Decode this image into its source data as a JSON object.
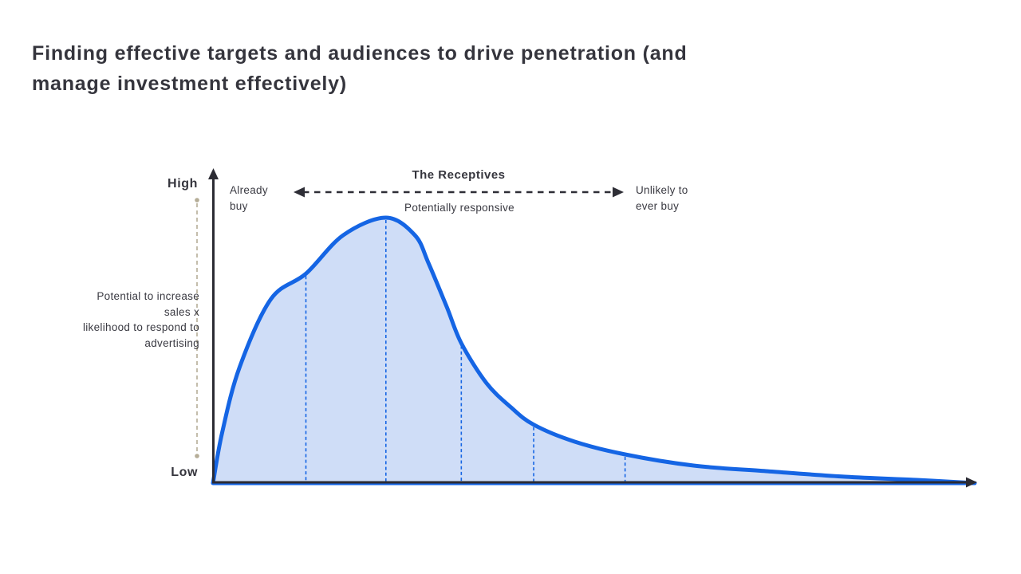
{
  "page": {
    "title": "Finding effective targets and audiences to drive penetration (and\nmanage investment effectively)"
  },
  "labels": {
    "high": "High",
    "low": "Low",
    "y_axis": "Potential to increase\nsales x\nlikelihood to respond to\nadvertising",
    "already_buy": "Already\nbuy",
    "receptives": "The Receptives",
    "potentially_responsive": "Potentially responsive",
    "unlikely": "Unlikely to\never buy"
  },
  "colors": {
    "curve_stroke": "#1565E4",
    "curve_fill": "#CFDDF7",
    "axis": "#2B2B33",
    "text": "#35353D",
    "guide_line": "#B5AD97",
    "dashed_arrow": "#2E2E36"
  },
  "chart_data": {
    "type": "area",
    "title": "Finding effective targets and audiences to drive penetration (and manage investment effectively)",
    "xlabel": "",
    "ylabel": "Potential to increase sales x likelihood to respond to advertising",
    "y_axis_tick_labels": {
      "top": "High",
      "bottom": "Low"
    },
    "x_range": [
      0,
      1
    ],
    "y_range": [
      0,
      1
    ],
    "grid": false,
    "legend": "none",
    "curve": {
      "name": "Potential to increase sales x likelihood to respond to advertising",
      "x": [
        0,
        0.012,
        0.035,
        0.076,
        0.122,
        0.171,
        0.227,
        0.265,
        0.283,
        0.307,
        0.326,
        0.359,
        0.391,
        0.421,
        0.474,
        0.541,
        0.631,
        0.726,
        0.83,
        0.924,
        1.0
      ],
      "y": [
        0,
        0.19,
        0.437,
        0.693,
        0.789,
        0.934,
        1.0,
        0.934,
        0.828,
        0.663,
        0.527,
        0.377,
        0.286,
        0.22,
        0.157,
        0.108,
        0.066,
        0.045,
        0.024,
        0.012,
        0.0
      ]
    },
    "segment_dividers": [
      {
        "x": 0.122,
        "y": 0.789
      },
      {
        "x": 0.227,
        "y": 1.0
      },
      {
        "x": 0.326,
        "y": 0.527
      },
      {
        "x": 0.421,
        "y": 0.22
      },
      {
        "x": 0.541,
        "y": 0.108
      }
    ],
    "annotations": {
      "left_segment": "Already buy",
      "middle_segment_title": "The Receptives",
      "middle_segment_subtitle": "Potentially responsive",
      "right_segment": "Unlikely to ever buy"
    }
  }
}
